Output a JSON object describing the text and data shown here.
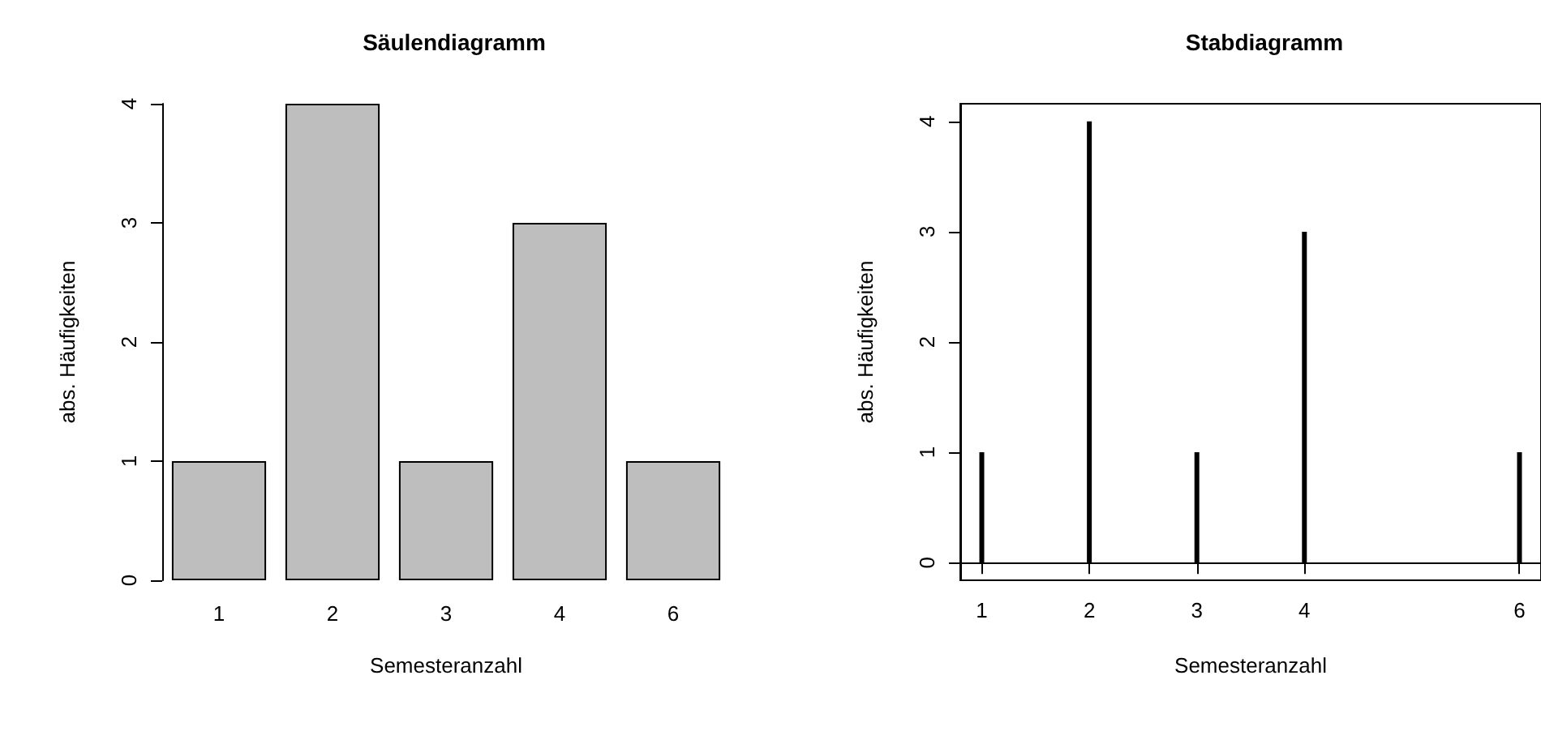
{
  "chart_data": [
    {
      "type": "bar",
      "title": "Säulendiagramm",
      "xlabel": "Semesteranzahl",
      "ylabel": "abs. Häufigkeiten",
      "categories": [
        "1",
        "2",
        "3",
        "4",
        "6"
      ],
      "values": [
        1,
        4,
        1,
        3,
        1
      ],
      "color": "#bebebe",
      "ylim": [
        0,
        4
      ],
      "yticks": [
        0,
        1,
        2,
        3,
        4
      ]
    },
    {
      "type": "bar",
      "title": "Stabdiagramm",
      "xlabel": "Semesteranzahl",
      "ylabel": "abs. Häufigkeiten",
      "x": [
        1,
        2,
        3,
        4,
        6
      ],
      "values": [
        1,
        4,
        1,
        3,
        1
      ],
      "color": "#000000",
      "xlim": [
        0.8,
        6.2
      ],
      "xticks": [
        1,
        2,
        3,
        4,
        6
      ],
      "ylim": [
        -0.16,
        4.16
      ],
      "yticks": [
        0,
        1,
        2,
        3,
        4
      ]
    }
  ]
}
